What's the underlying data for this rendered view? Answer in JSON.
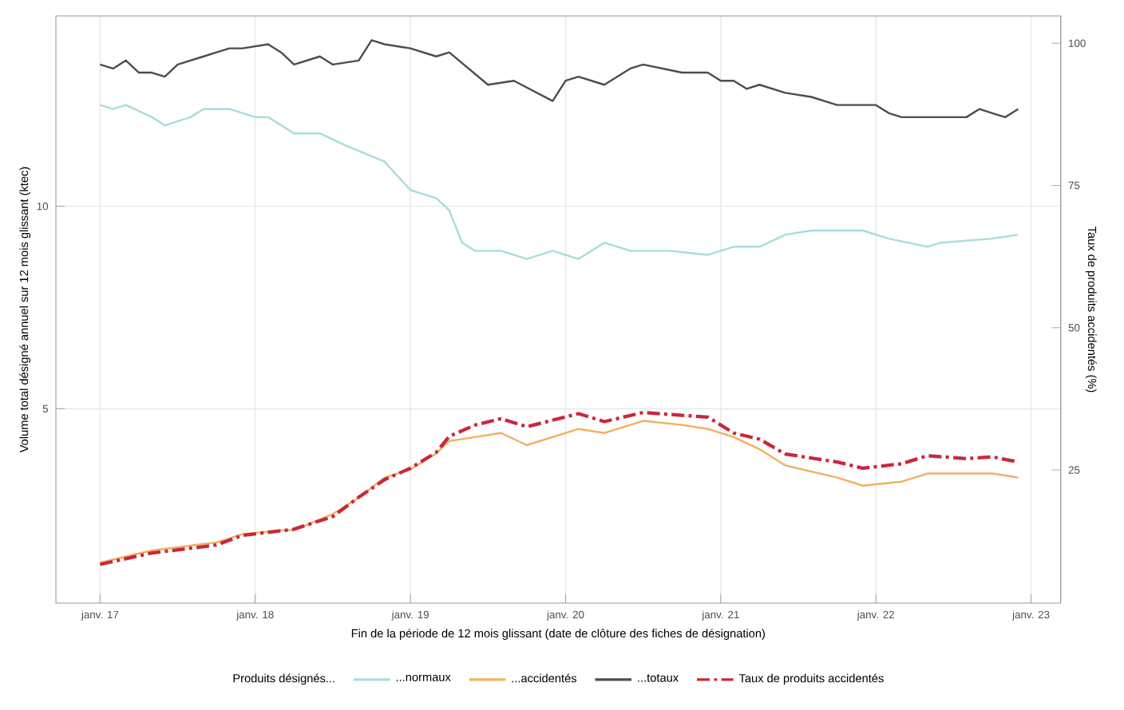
{
  "chart_data": {
    "type": "line",
    "xlabel": "Fin de la période de 12 mois glissant (date de clôture des fiches de désignation)",
    "ylabel": "Volume total désigné annuel sur 12 mois glissant (ktec)",
    "y2label": "Taux de produits accidentés (%)",
    "legend_title": "Produits désignés...",
    "series": [
      {
        "name": "...normaux",
        "color": "#a8dcdc",
        "x": [
          "2017-01",
          "2017-02",
          "2017-03",
          "2017-05",
          "2017-06",
          "2017-08",
          "2017-09",
          "2017-11",
          "2018-01",
          "2018-02",
          "2018-04",
          "2018-06",
          "2018-08",
          "2018-11",
          "2019-01",
          "2019-02",
          "2019-03",
          "2019-04",
          "2019-05",
          "2019-06",
          "2019-08",
          "2019-10",
          "2019-12",
          "2020-02",
          "2020-04",
          "2020-06",
          "2020-09",
          "2020-12",
          "2021-02",
          "2021-04",
          "2021-06",
          "2021-08",
          "2021-12",
          "2022-02",
          "2022-05",
          "2022-06",
          "2022-10",
          "2022-12"
        ],
        "values": [
          12.5,
          12.4,
          12.5,
          12.2,
          12.0,
          12.2,
          12.4,
          12.4,
          12.2,
          12.2,
          11.8,
          11.8,
          11.5,
          11.1,
          10.4,
          10.3,
          10.2,
          9.9,
          9.1,
          8.9,
          8.9,
          8.7,
          8.9,
          8.7,
          9.1,
          8.9,
          8.9,
          8.8,
          9.0,
          9.0,
          9.3,
          9.4,
          9.4,
          9.2,
          9.0,
          9.1,
          9.2,
          9.3
        ]
      },
      {
        "name": "...accidentés",
        "color": "#f0b060",
        "x": [
          "2017-01",
          "2017-05",
          "2017-10",
          "2017-12",
          "2018-03",
          "2018-04",
          "2018-07",
          "2018-09",
          "2018-11",
          "2019-01",
          "2019-03",
          "2019-04",
          "2019-06",
          "2019-08",
          "2019-10",
          "2020-02",
          "2020-04",
          "2020-07",
          "2020-10",
          "2020-12",
          "2021-02",
          "2021-04",
          "2021-06",
          "2021-10",
          "2021-12",
          "2022-03",
          "2022-05",
          "2022-08",
          "2022-10",
          "2022-12"
        ],
        "values": [
          1.2,
          1.5,
          1.7,
          1.9,
          2.0,
          2.0,
          2.4,
          2.8,
          3.3,
          3.5,
          3.9,
          4.2,
          4.3,
          4.4,
          4.1,
          4.5,
          4.4,
          4.7,
          4.6,
          4.5,
          4.3,
          4.0,
          3.6,
          3.3,
          3.1,
          3.2,
          3.4,
          3.4,
          3.4,
          3.3
        ]
      },
      {
        "name": "...totaux",
        "color": "#4d4d4d",
        "x": [
          "2017-01",
          "2017-02",
          "2017-03",
          "2017-04",
          "2017-05",
          "2017-06",
          "2017-07",
          "2017-09",
          "2017-10",
          "2017-11",
          "2017-12",
          "2018-02",
          "2018-03",
          "2018-04",
          "2018-06",
          "2018-07",
          "2018-09",
          "2018-10",
          "2018-11",
          "2019-01",
          "2019-03",
          "2019-04",
          "2019-07",
          "2019-09",
          "2019-12",
          "2020-01",
          "2020-02",
          "2020-04",
          "2020-06",
          "2020-07",
          "2020-10",
          "2020-12",
          "2021-01",
          "2021-02",
          "2021-03",
          "2021-04",
          "2021-06",
          "2021-08",
          "2021-10",
          "2022-01",
          "2022-02",
          "2022-03",
          "2022-06",
          "2022-08",
          "2022-09",
          "2022-10",
          "2022-11",
          "2022-12"
        ],
        "values": [
          13.5,
          13.4,
          13.6,
          13.3,
          13.3,
          13.2,
          13.5,
          13.7,
          13.8,
          13.9,
          13.9,
          14.0,
          13.8,
          13.5,
          13.7,
          13.5,
          13.6,
          14.1,
          14.0,
          13.9,
          13.7,
          13.8,
          13.0,
          13.1,
          12.6,
          13.1,
          13.2,
          13.0,
          13.4,
          13.5,
          13.3,
          13.3,
          13.1,
          13.1,
          12.9,
          13.0,
          12.8,
          12.7,
          12.5,
          12.5,
          12.3,
          12.2,
          12.2,
          12.2,
          12.4,
          12.3,
          12.2,
          12.4
        ]
      },
      {
        "name": "Taux de produits accidentés",
        "color": "#c8283c",
        "axis": "y2",
        "line_style": "dashed",
        "x": [
          "2017-01",
          "2017-05",
          "2017-10",
          "2017-12",
          "2018-03",
          "2018-04",
          "2018-07",
          "2018-09",
          "2018-11",
          "2019-01",
          "2019-03",
          "2019-04",
          "2019-06",
          "2019-08",
          "2019-10",
          "2020-02",
          "2020-04",
          "2020-07",
          "2020-10",
          "2020-12",
          "2021-02",
          "2021-04",
          "2021-06",
          "2021-10",
          "2021-12",
          "2022-03",
          "2022-05",
          "2022-08",
          "2022-10",
          "2022-12"
        ],
        "values": [
          8.4,
          10.4,
          11.8,
          13.5,
          14.3,
          14.6,
          16.8,
          20.2,
          23.3,
          25.3,
          28.1,
          30.9,
          32.9,
          34.0,
          32.6,
          34.9,
          33.5,
          35.1,
          34.6,
          34.3,
          31.5,
          30.4,
          27.8,
          26.4,
          25.3,
          26.1,
          27.5,
          27.0,
          27.3,
          26.4
        ]
      }
    ],
    "xlim": [
      "2016-09-19",
      "2023-03-10"
    ],
    "xticks": [
      {
        "value": "2017-01",
        "label": "janv. 17"
      },
      {
        "value": "2018-01",
        "label": "janv. 18"
      },
      {
        "value": "2019-01",
        "label": "janv. 19"
      },
      {
        "value": "2020-01",
        "label": "janv. 20"
      },
      {
        "value": "2021-01",
        "label": "janv. 21"
      },
      {
        "value": "2022-01",
        "label": "janv. 22"
      },
      {
        "value": "2023-01",
        "label": "janv. 23"
      }
    ],
    "ylim": [
      0.2,
      14.7
    ],
    "yticks": [
      5,
      10
    ],
    "y2lim": [
      1.6,
      104.8
    ],
    "y2ticks": [
      25,
      50,
      75,
      100
    ],
    "grid": true,
    "legend": "bottom",
    "marker": "none",
    "line_style": "solid"
  }
}
